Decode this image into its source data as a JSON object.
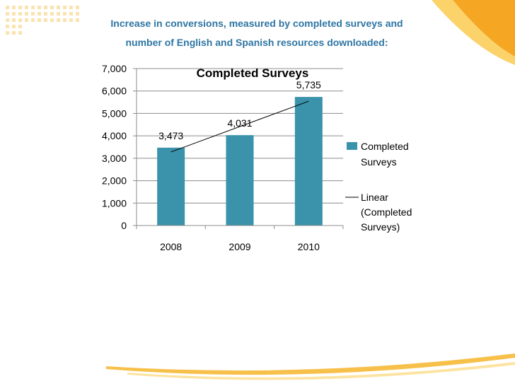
{
  "slide": {
    "heading_lines": [
      "Increase in conversions, measured by completed surveys and",
      "number of English and Spanish resources downloaded:"
    ]
  },
  "colors": {
    "heading": "#2e75a3",
    "bar": "#3a93aa",
    "accent_orange": "#f5a623",
    "accent_yellow": "#fbd36a"
  },
  "chart_data": {
    "type": "bar",
    "title": "Completed Surveys",
    "categories": [
      "2008",
      "2009",
      "2010"
    ],
    "series": [
      {
        "name": "Completed Surveys",
        "values": [
          3473,
          4031,
          5735
        ]
      }
    ],
    "data_labels": [
      "3,473",
      "4,031",
      "5,735"
    ],
    "trendline": {
      "name": "Linear (Completed Surveys)",
      "type": "linear"
    },
    "y_ticks": [
      "0",
      "1,000",
      "2,000",
      "3,000",
      "4,000",
      "5,000",
      "6,000",
      "7,000"
    ],
    "ylim": [
      0,
      7000
    ],
    "grid": true,
    "legend": {
      "position": "right",
      "entries": [
        {
          "lines": [
            "Completed",
            "Surveys"
          ]
        },
        {
          "lines": [
            "Linear",
            "(Completed",
            "Surveys)"
          ]
        }
      ]
    }
  }
}
